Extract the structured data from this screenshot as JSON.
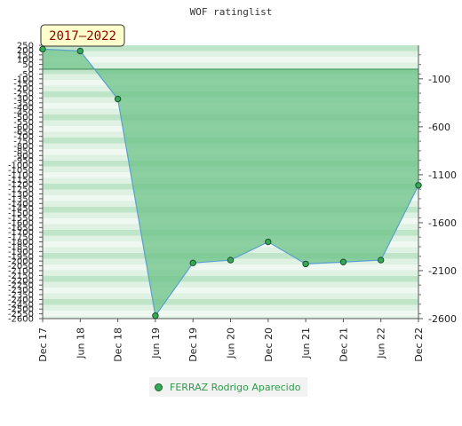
{
  "chart_data": {
    "type": "area",
    "title": "WOF ratinglist",
    "badge": "2017–2022",
    "x": [
      "Dec 17",
      "Jun 18",
      "Dec 18",
      "Jun 19",
      "Dec 19",
      "Jun 20",
      "Dec 20",
      "Jun 21",
      "Dec 21",
      "Jun 22",
      "Dec 22"
    ],
    "series": [
      {
        "name": "FERRAZ Rodrigo Aparecido",
        "values": [
          210,
          190,
          -310,
          -2570,
          -2020,
          -1990,
          -1800,
          -2030,
          -2010,
          -1990,
          -1210
        ]
      }
    ],
    "left_axis": {
      "ylim": [
        -2600,
        250
      ],
      "ticks": [
        250,
        200,
        150,
        100,
        50,
        0,
        -50,
        -100,
        -150,
        -200,
        -250,
        -300,
        -350,
        -400,
        -450,
        -500,
        -550,
        -600,
        -650,
        -700,
        -750,
        -800,
        -850,
        -900,
        -950,
        -1000,
        -1050,
        -1100,
        -1150,
        -1200,
        -1250,
        -1300,
        -1350,
        -1400,
        -1450,
        -1500,
        -1550,
        -1600,
        -1650,
        -1700,
        -1750,
        -1800,
        -1850,
        -1900,
        -1950,
        -2000,
        -2050,
        -2100,
        -2150,
        -2200,
        -2250,
        -2300,
        -2350,
        -2400,
        -2450,
        -2500,
        -2550,
        -2600
      ]
    },
    "right_axis": {
      "ticks": [
        "-100",
        "-600",
        "-1100",
        "-1600",
        "-2100",
        "-2600"
      ]
    },
    "legend_position": "bottom",
    "colors": {
      "fill": "#6fc48a",
      "line": "#5aa0d0",
      "marker": "#33aa55",
      "band_light": "#f0f8f2",
      "band_dark": "#bfe5c8",
      "badge_bg": "#ffffcc"
    }
  }
}
